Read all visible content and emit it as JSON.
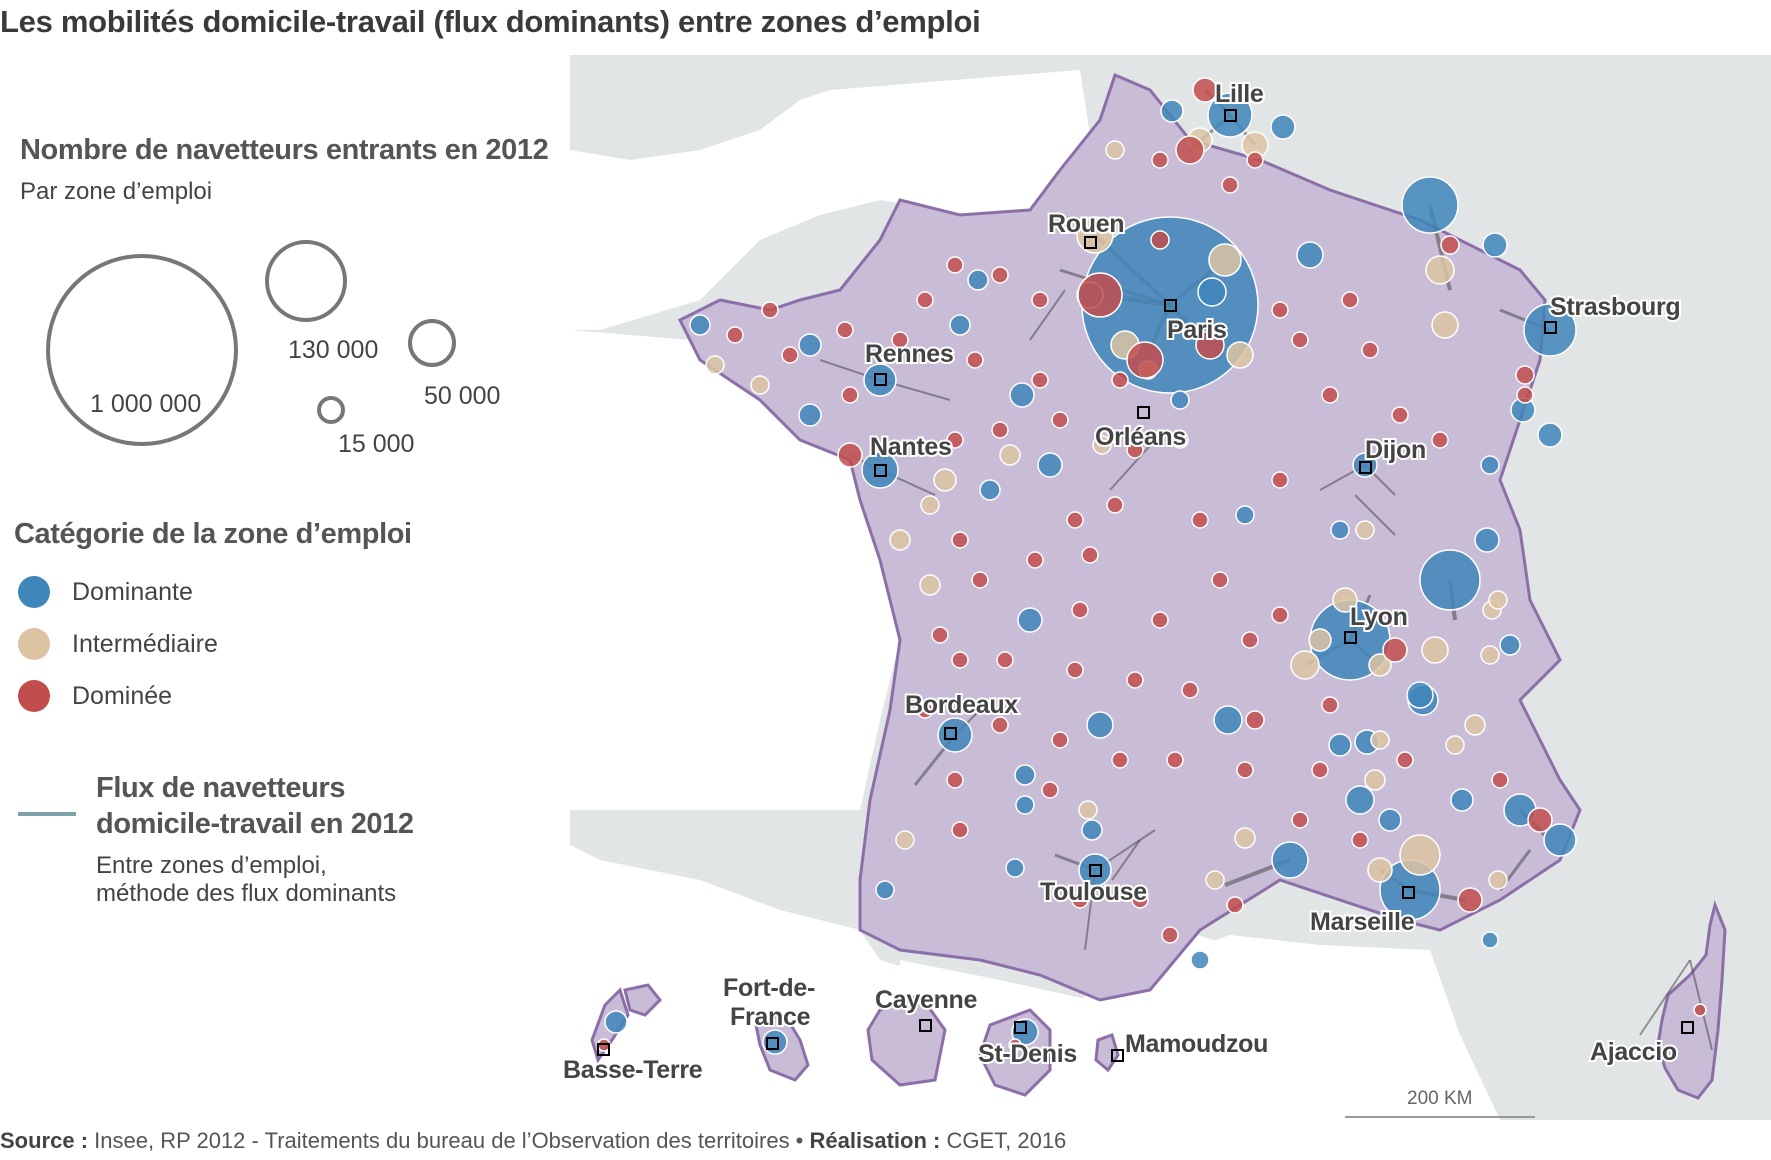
{
  "title": "Les mobilités domicile-travail (flux dominants) entre zones d’emploi",
  "size_legend": {
    "heading": "Nombre de navetteurs entrants en 2012",
    "subheading": "Par zone d’emploi",
    "sizes": [
      "1 000 000",
      "130 000",
      "50 000",
      "15 000"
    ]
  },
  "category_legend": {
    "heading": "Catégorie de la zone d’emploi",
    "items": [
      {
        "label": "Dominante",
        "color": "#3f86bb"
      },
      {
        "label": "Intermédiaire",
        "color": "#dcc4a2"
      },
      {
        "label": "Dominée",
        "color": "#c24d4d"
      }
    ]
  },
  "flux_legend": {
    "heading_line1": "Flux de navetteurs",
    "heading_line2": "domicile-travail en 2012",
    "sub_line1": "Entre zones d’emploi,",
    "sub_line2": "méthode des flux dominants",
    "color": "#7fa1ab"
  },
  "cities": {
    "lille": "Lille",
    "rouen": "Rouen",
    "paris": "Paris",
    "strasbourg": "Strasbourg",
    "rennes": "Rennes",
    "nantes": "Nantes",
    "orleans": "Orléans",
    "dijon": "Dijon",
    "lyon": "Lyon",
    "bordeaux": "Bordeaux",
    "toulouse": "Toulouse",
    "marseille": "Marseille",
    "ajaccio": "Ajaccio",
    "basse_terre": "Basse-Terre",
    "fort_de_france_1": "Fort-de-",
    "fort_de_france_2": "France",
    "cayenne": "Cayenne",
    "st_denis": "St-Denis",
    "mamoudzou": "Mamoudzou"
  },
  "scale_bar": "200 KM",
  "source": {
    "source_label": "Source :",
    "source_text": "Insee, RP 2012 - Traitements du bureau de l’Observation des territoires •",
    "realisation_label": "Réalisation :",
    "realisation_text": "CGET, 2016"
  },
  "colors": {
    "sea": "#ffffff",
    "land_neighbors": "#e1e5e6",
    "france_fill": "#c9bcd7",
    "france_border": "#8c6ea8",
    "dominante": "#3f86bb",
    "intermediaire": "#dcc4a2",
    "dominee": "#c24d4d",
    "flux": "#4a4a4a"
  }
}
